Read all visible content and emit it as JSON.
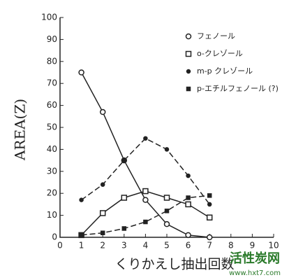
{
  "chart_data": {
    "type": "line",
    "x_label": "くりかえし抽出回数",
    "y_label": "AREA(Z)",
    "xlim": [
      0,
      10
    ],
    "xticks": [
      0,
      1,
      2,
      3,
      4,
      5,
      6,
      7,
      8,
      9,
      10
    ],
    "ylim": [
      0,
      100
    ],
    "yticks": [
      0,
      10,
      20,
      30,
      40,
      50,
      60,
      70,
      80,
      90,
      100
    ],
    "x": [
      1,
      2,
      3,
      4,
      5,
      6,
      7
    ],
    "series": [
      {
        "name": "フェノール",
        "color": "#222222",
        "marker": "circle",
        "dashed": false,
        "values": [
          75,
          57,
          35,
          17,
          6,
          1,
          0
        ]
      },
      {
        "name": "o-クレゾール",
        "color": "#222222",
        "marker": "square",
        "dashed": false,
        "values": [
          1,
          11,
          18,
          21,
          18,
          15,
          9
        ]
      },
      {
        "name": "m-p クレゾール",
        "color": "#222222",
        "marker": "dot",
        "dashed": true,
        "values": [
          17,
          24,
          35,
          45,
          40,
          28,
          15
        ]
      },
      {
        "name": "p-エチルフェノール (?)",
        "color": "#222222",
        "marker": "filled-square",
        "dashed": true,
        "values": [
          1,
          2,
          4,
          7,
          12,
          18,
          19
        ]
      }
    ],
    "watermark": [
      "活性炭网",
      "www.hxt7.com"
    ]
  }
}
